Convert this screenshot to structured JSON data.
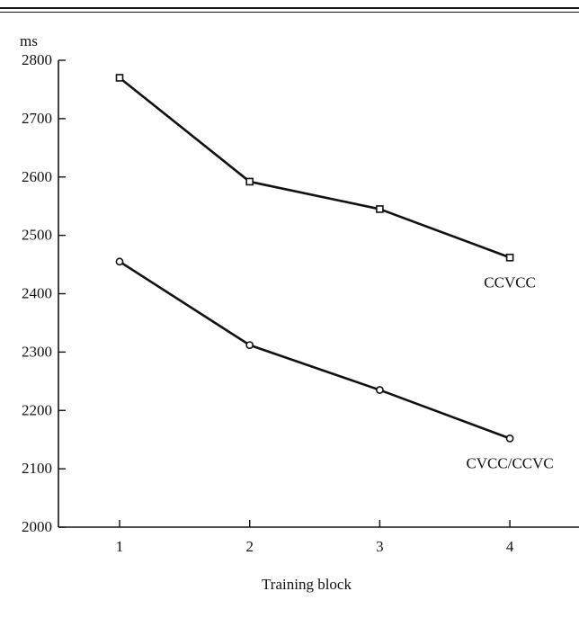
{
  "chart_data": {
    "type": "line",
    "x": [
      1,
      2,
      3,
      4
    ],
    "xticks": [
      "1",
      "2",
      "3",
      "4"
    ],
    "xlabel": "Training block",
    "ylabel": "ms",
    "ylim": [
      2000,
      2800
    ],
    "yticks": [
      "2000",
      "2100",
      "2200",
      "2300",
      "2400",
      "2500",
      "2600",
      "2700",
      "2800"
    ],
    "grid": false,
    "legend": "none",
    "series": [
      {
        "name": "CCVCC",
        "marker": "square",
        "values": [
          2770,
          2592,
          2545,
          2462
        ]
      },
      {
        "name": "CVCC/CCVC",
        "marker": "circle",
        "values": [
          2455,
          2312,
          2235,
          2152
        ]
      }
    ]
  }
}
